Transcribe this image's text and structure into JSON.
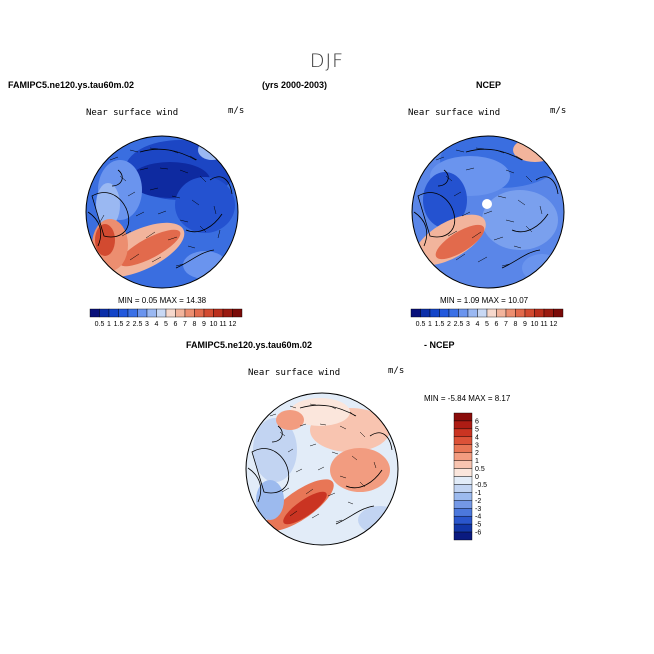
{
  "season": "DJF",
  "headers": {
    "model_top": "FAMIPC5.ne120.ys.tau60m.02",
    "years": "(yrs 2000-2003)",
    "obs_top": "NCEP",
    "model_diff": "FAMIPC5.ne120.ys.tau60m.02",
    "obs_diff": "- NCEP"
  },
  "panels": [
    {
      "id": "model",
      "field_label": "Near surface wind",
      "units": "m/s",
      "min_label": "MIN =",
      "min": "0.05",
      "max_label": "MAX =",
      "max": "14.38"
    },
    {
      "id": "obs",
      "field_label": "Near surface wind",
      "units": "m/s",
      "min_label": "MIN =",
      "min": "1.09",
      "max_label": "MAX =",
      "max": "10.07"
    },
    {
      "id": "diff",
      "field_label": "Near surface wind",
      "units": "m/s",
      "min_label": "MIN =",
      "min": "-5.84",
      "max_label": "MAX =",
      "max": "8.17"
    }
  ],
  "colorbar_abs": {
    "labels": [
      "0.5",
      "1",
      "1.5",
      "2",
      "2.5",
      "3",
      "4",
      "5",
      "6",
      "7",
      "8",
      "9",
      "10",
      "11",
      "12"
    ],
    "colors": [
      "#08107a",
      "#0a2ea8",
      "#1244c8",
      "#2258dc",
      "#3a70e6",
      "#6a94ee",
      "#9ab8f2",
      "#c8d8f4",
      "#f6d8cc",
      "#f2b49c",
      "#ec8e70",
      "#e26a4c",
      "#d24a30",
      "#ba2e1c",
      "#9a1a10",
      "#7a0a08"
    ]
  },
  "colorbar_diff": {
    "labels": [
      "6",
      "5",
      "4",
      "3",
      "2",
      "1",
      "0.5",
      "0",
      "-0.5",
      "-1",
      "-2",
      "-3",
      "-4",
      "-5",
      "-6"
    ],
    "colors": [
      "#8a0c0a",
      "#ae1c14",
      "#ca3422",
      "#dc5238",
      "#e87656",
      "#f29c80",
      "#f8c4b0",
      "#fbe6dc",
      "#e2ecf8",
      "#c2d4f2",
      "#9cbaee",
      "#7498e6",
      "#4c78dc",
      "#2a56cc",
      "#1236a8",
      "#0a1a80"
    ]
  }
}
